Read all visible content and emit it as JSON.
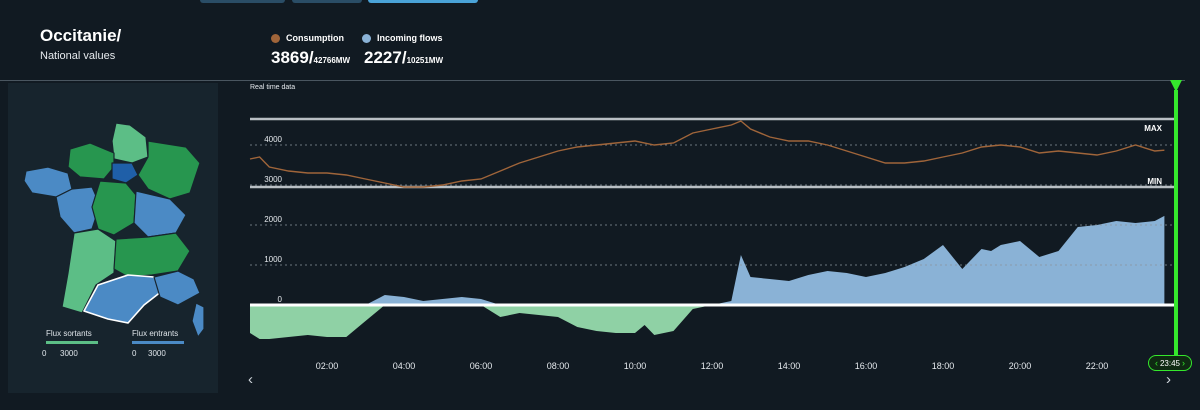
{
  "header": {
    "region_title": "Occitanie/",
    "region_subtitle": "National values"
  },
  "legend": [
    {
      "label": "Consumption",
      "color": "#a0653a",
      "value": "3869/",
      "capacity": "42766MW"
    },
    {
      "label": "Incoming flows",
      "color": "#8ab2d6",
      "value": "2227/",
      "capacity": "10251MW"
    }
  ],
  "map": {
    "legend_out": {
      "label": "Flux sortants",
      "min": "0",
      "max": "3000",
      "color": "#5cbe86"
    },
    "legend_in": {
      "label": "Flux entrants",
      "min": "0",
      "max": "3000",
      "color": "#4b8ac5"
    },
    "region_colors": {
      "green_light": "#5cbe86",
      "green_dark": "#27964f",
      "blue": "#4b8ac5",
      "blue_dark": "#1f5fa8"
    }
  },
  "chart": {
    "caption": "Real time data",
    "max_label": "MAX",
    "min_label": "MIN",
    "time_badge": "23:45"
  },
  "chart_data": {
    "type": "line",
    "x_ticks": [
      "02:00",
      "04:00",
      "06:00",
      "08:00",
      "10:00",
      "12:00",
      "14:00",
      "16:00",
      "18:00",
      "20:00",
      "22:00"
    ],
    "y_ticks": [
      0,
      1000,
      2000,
      3000,
      4000
    ],
    "x_range": [
      "00:00",
      "24:00"
    ],
    "ylim": [
      -1000,
      4900
    ],
    "max_line": 4650,
    "min_line": 2950,
    "series": [
      {
        "name": "Consumption",
        "type": "line",
        "color": "#a0653a",
        "x": [
          "00:00",
          "00:15",
          "00:30",
          "01:00",
          "01:30",
          "02:00",
          "02:30",
          "03:00",
          "03:30",
          "04:00",
          "04:30",
          "05:00",
          "05:30",
          "06:00",
          "06:30",
          "07:00",
          "07:30",
          "08:00",
          "08:30",
          "09:00",
          "09:30",
          "10:00",
          "10:30",
          "11:00",
          "11:30",
          "12:00",
          "12:30",
          "12:45",
          "13:00",
          "13:30",
          "14:00",
          "14:30",
          "15:00",
          "15:30",
          "16:00",
          "16:30",
          "17:00",
          "17:30",
          "18:00",
          "18:30",
          "19:00",
          "19:30",
          "20:00",
          "20:30",
          "21:00",
          "21:30",
          "22:00",
          "22:30",
          "23:00",
          "23:30",
          "23:45"
        ],
        "values": [
          3650,
          3700,
          3450,
          3350,
          3300,
          3300,
          3250,
          3150,
          3050,
          2950,
          2950,
          3000,
          3100,
          3150,
          3350,
          3550,
          3700,
          3850,
          3950,
          4000,
          4050,
          4100,
          4000,
          4050,
          4300,
          4400,
          4500,
          4600,
          4400,
          4200,
          4100,
          4100,
          4000,
          3850,
          3700,
          3550,
          3550,
          3600,
          3700,
          3800,
          3950,
          4000,
          3950,
          3800,
          3850,
          3800,
          3750,
          3850,
          4000,
          3850,
          3869
        ]
      },
      {
        "name": "Incoming flows",
        "type": "area",
        "colors": {
          "positive": "#8ab2d6",
          "negative": "#8fd1a5"
        },
        "x": [
          "00:00",
          "00:15",
          "00:30",
          "01:00",
          "01:30",
          "02:00",
          "02:30",
          "03:00",
          "03:30",
          "04:00",
          "04:30",
          "05:00",
          "05:30",
          "06:00",
          "06:30",
          "07:00",
          "07:30",
          "08:00",
          "08:30",
          "09:00",
          "09:30",
          "10:00",
          "10:15",
          "10:30",
          "11:00",
          "11:30",
          "12:00",
          "12:30",
          "12:45",
          "13:00",
          "13:30",
          "14:00",
          "14:30",
          "15:00",
          "15:30",
          "16:00",
          "16:30",
          "17:00",
          "17:30",
          "18:00",
          "18:30",
          "19:00",
          "19:15",
          "19:30",
          "20:00",
          "20:30",
          "21:00",
          "21:30",
          "22:00",
          "22:30",
          "23:00",
          "23:30",
          "23:45"
        ],
        "values": [
          -700,
          -850,
          -850,
          -800,
          -750,
          -800,
          -800,
          -400,
          250,
          200,
          100,
          150,
          200,
          150,
          -300,
          -200,
          -250,
          -300,
          -550,
          -650,
          -700,
          -700,
          -500,
          -750,
          -650,
          -100,
          0,
          100,
          1250,
          700,
          650,
          600,
          750,
          850,
          800,
          700,
          800,
          950,
          1150,
          1500,
          900,
          1400,
          1350,
          1500,
          1600,
          1200,
          1350,
          1950,
          2000,
          2100,
          2050,
          2100,
          2227
        ]
      }
    ]
  }
}
